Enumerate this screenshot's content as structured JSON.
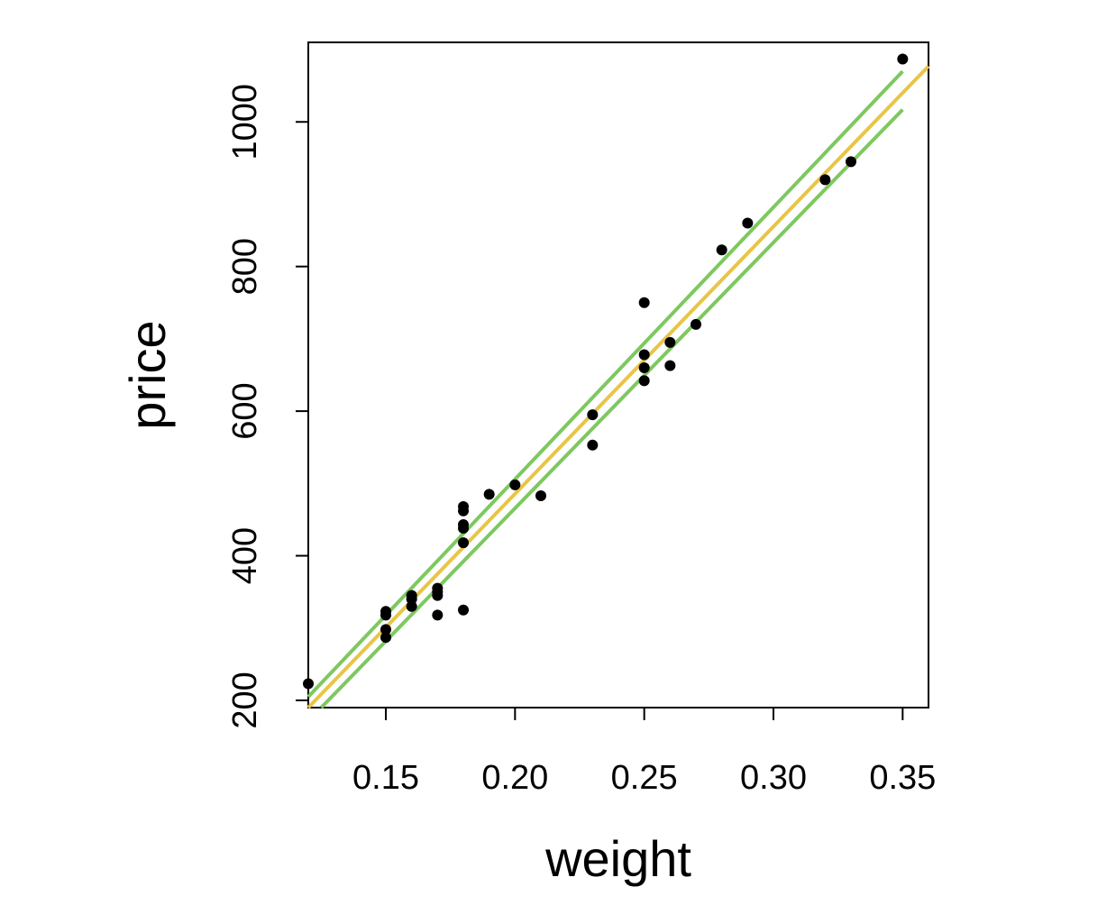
{
  "chart_data": {
    "type": "scatter",
    "xlabel": "weight",
    "ylabel": "price",
    "xlim": [
      0.12,
      0.36
    ],
    "ylim": [
      190,
      1110
    ],
    "x_ticks": [
      0.15,
      0.2,
      0.25,
      0.3,
      0.35
    ],
    "x_tick_labels": [
      "0.15",
      "0.20",
      "0.25",
      "0.30",
      "0.35"
    ],
    "y_ticks": [
      200,
      400,
      600,
      800,
      1000
    ],
    "y_tick_labels": [
      "200",
      "400",
      "600",
      "800",
      "1000"
    ],
    "grid": false,
    "points": [
      {
        "x": 0.12,
        "y": 223
      },
      {
        "x": 0.15,
        "y": 323
      },
      {
        "x": 0.15,
        "y": 318
      },
      {
        "x": 0.15,
        "y": 298
      },
      {
        "x": 0.15,
        "y": 287
      },
      {
        "x": 0.16,
        "y": 345
      },
      {
        "x": 0.16,
        "y": 340
      },
      {
        "x": 0.16,
        "y": 330
      },
      {
        "x": 0.17,
        "y": 355
      },
      {
        "x": 0.17,
        "y": 350
      },
      {
        "x": 0.17,
        "y": 345
      },
      {
        "x": 0.17,
        "y": 318
      },
      {
        "x": 0.18,
        "y": 468
      },
      {
        "x": 0.18,
        "y": 462
      },
      {
        "x": 0.18,
        "y": 443
      },
      {
        "x": 0.18,
        "y": 438
      },
      {
        "x": 0.18,
        "y": 418
      },
      {
        "x": 0.18,
        "y": 325
      },
      {
        "x": 0.19,
        "y": 485
      },
      {
        "x": 0.2,
        "y": 498
      },
      {
        "x": 0.21,
        "y": 483
      },
      {
        "x": 0.23,
        "y": 595
      },
      {
        "x": 0.23,
        "y": 553
      },
      {
        "x": 0.25,
        "y": 750
      },
      {
        "x": 0.25,
        "y": 678
      },
      {
        "x": 0.25,
        "y": 660
      },
      {
        "x": 0.25,
        "y": 642
      },
      {
        "x": 0.26,
        "y": 695
      },
      {
        "x": 0.26,
        "y": 663
      },
      {
        "x": 0.27,
        "y": 720
      },
      {
        "x": 0.28,
        "y": 823
      },
      {
        "x": 0.29,
        "y": 860
      },
      {
        "x": 0.32,
        "y": 920
      },
      {
        "x": 0.33,
        "y": 945
      },
      {
        "x": 0.35,
        "y": 1087
      }
    ],
    "fit_line": {
      "color": "#e8c547",
      "points": [
        [
          0.12,
          190
        ],
        [
          0.36,
          1077
        ]
      ]
    },
    "confidence_lines": [
      {
        "color": "#7ec860",
        "points": [
          [
            0.12,
            205
          ],
          [
            0.35,
            1070
          ]
        ]
      },
      {
        "color": "#7ec860",
        "points": [
          [
            0.125,
            190
          ],
          [
            0.35,
            1017
          ]
        ]
      }
    ],
    "point_color": "#000000"
  }
}
